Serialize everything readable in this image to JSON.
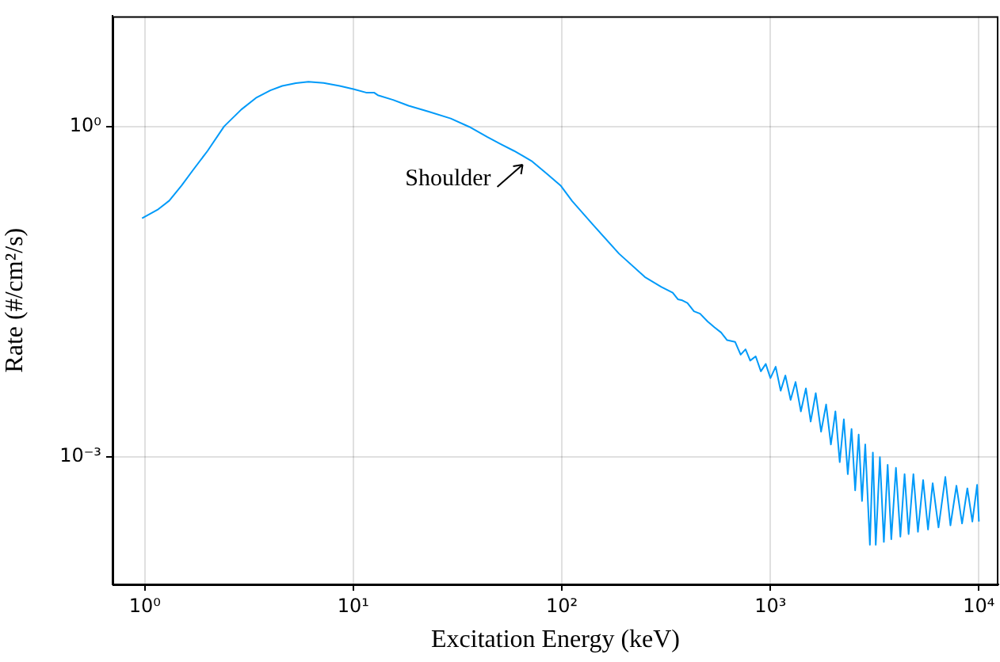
{
  "chart_data": {
    "type": "line",
    "xlabel": "Excitation Energy (keV)",
    "ylabel": "Rate (#/cm²/s)",
    "log": "xy",
    "grid": true,
    "legend": false,
    "marker": "none",
    "line_style": "solid",
    "xlim": [
      0.73,
      12400
    ],
    "ylim": [
      7e-05,
      10
    ],
    "xticks": [
      {
        "value": 1,
        "label": "10⁰"
      },
      {
        "value": 10,
        "label": "10¹"
      },
      {
        "value": 100,
        "label": "10²"
      },
      {
        "value": 1000,
        "label": "10³"
      },
      {
        "value": 10000,
        "label": "10⁴"
      }
    ],
    "yticks": [
      {
        "value": 0.001,
        "label": "10⁻³"
      },
      {
        "value": 1,
        "label": "10⁰"
      }
    ],
    "annotations": [
      {
        "text": "Shoulder",
        "x": 72,
        "y": 0.48
      }
    ],
    "series": [
      {
        "color": "#009af9",
        "x": [
          0.97,
          1.15,
          1.31,
          1.5,
          1.7,
          2.0,
          2.4,
          2.9,
          3.41,
          4.0,
          4.56,
          5.3,
          6.09,
          7.2,
          8.6,
          10,
          11.6,
          12.6,
          13.1,
          15.5,
          18.4,
          23,
          29.3,
          36,
          44,
          51,
          58.9,
          65,
          72.1,
          85,
          99,
          112,
          140,
          188,
          250,
          300,
          340,
          360,
          378,
          400,
          430,
          460,
          500,
          540,
          580,
          620,
          677,
          720,
          760,
          800,
          850,
          900,
          950,
          1000,
          1060,
          1120,
          1180,
          1250,
          1320,
          1400,
          1480,
          1560,
          1650,
          1750,
          1850,
          1950,
          2050,
          2150,
          2250,
          2350,
          2450,
          2550,
          2650,
          2750,
          2850,
          3000,
          3100,
          3200,
          3350,
          3500,
          3650,
          3800,
          4000,
          4200,
          4400,
          4600,
          4850,
          5100,
          5400,
          5700,
          6000,
          6400,
          6900,
          7300,
          7800,
          8300,
          8800,
          9300,
          9800,
          10000
        ],
        "values": [
          0.147,
          0.175,
          0.212,
          0.29,
          0.4,
          0.6,
          1.0,
          1.42,
          1.81,
          2.12,
          2.33,
          2.47,
          2.54,
          2.48,
          2.33,
          2.18,
          2.02,
          2.02,
          1.92,
          1.74,
          1.54,
          1.36,
          1.18,
          0.99,
          0.8,
          0.69,
          0.6,
          0.54,
          0.48,
          0.37,
          0.288,
          0.21,
          0.13,
          0.07,
          0.043,
          0.035,
          0.031,
          0.027,
          0.0264,
          0.025,
          0.021,
          0.02,
          0.017,
          0.015,
          0.0135,
          0.0115,
          0.0111,
          0.0085,
          0.0095,
          0.0075,
          0.0082,
          0.006,
          0.007,
          0.0052,
          0.0066,
          0.004,
          0.0055,
          0.0033,
          0.0048,
          0.0026,
          0.0042,
          0.0021,
          0.0038,
          0.0017,
          0.003,
          0.0013,
          0.0026,
          0.0009,
          0.0022,
          0.0007,
          0.0018,
          0.0005,
          0.0016,
          0.0004,
          0.0013,
          0.00016,
          0.0011,
          0.00016,
          0.001,
          0.00017,
          0.00085,
          0.00018,
          0.0008,
          0.00019,
          0.0007,
          0.0002,
          0.0007,
          0.00021,
          0.00062,
          0.00022,
          0.00058,
          0.00023,
          0.00066,
          0.00024,
          0.00055,
          0.00025,
          0.00052,
          0.00026,
          0.00056,
          0.00026
        ]
      }
    ]
  }
}
